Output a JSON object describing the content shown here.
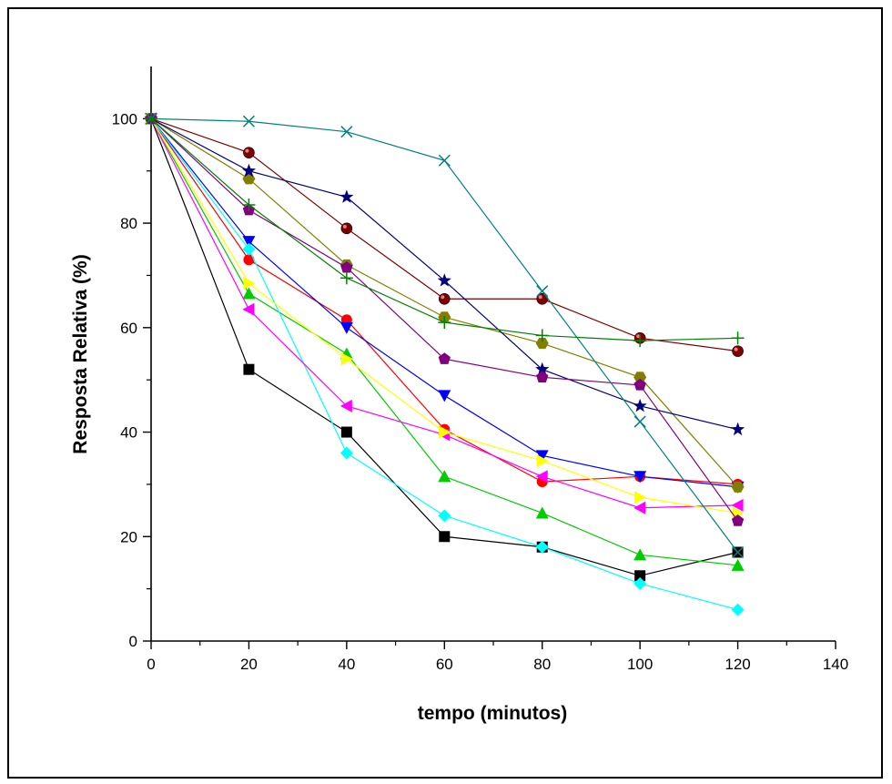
{
  "chart_data": {
    "type": "line",
    "title": "",
    "xlabel": "tempo (minutos)",
    "ylabel": "Resposta Relativa (%)",
    "xlim": [
      0,
      140
    ],
    "ylim": [
      0,
      110
    ],
    "xticks": [
      0,
      20,
      40,
      60,
      80,
      100,
      120,
      140
    ],
    "yticks": [
      0,
      20,
      40,
      60,
      80,
      100
    ],
    "grid": false,
    "legend": "none",
    "x": [
      0,
      20,
      40,
      60,
      80,
      100,
      120
    ],
    "series": [
      {
        "color": "#000000",
        "marker": "square",
        "values": [
          100,
          52,
          40,
          20,
          18,
          12.5,
          17
        ]
      },
      {
        "color": "#ff0000",
        "marker": "circle",
        "values": [
          100,
          73,
          61.5,
          40.5,
          30.5,
          31.5,
          30
        ]
      },
      {
        "color": "#00cc00",
        "marker": "triangle-up",
        "values": [
          100,
          66.5,
          55,
          31.5,
          24.5,
          16.5,
          14.5
        ]
      },
      {
        "color": "#0000ff",
        "marker": "triangle-down",
        "values": [
          100,
          76.5,
          60,
          47,
          35.5,
          31.5,
          29.5
        ]
      },
      {
        "color": "#00ffff",
        "marker": "diamond",
        "values": [
          100,
          75,
          36,
          24,
          18,
          11,
          6
        ]
      },
      {
        "color": "#ff00ff",
        "marker": "triangle-left",
        "values": [
          100,
          63.5,
          45,
          39.5,
          31.5,
          25.5,
          26
        ]
      },
      {
        "color": "#ffff00",
        "marker": "triangle-right",
        "values": [
          100,
          68.5,
          54,
          40,
          34.5,
          27.5,
          24.5
        ]
      },
      {
        "color": "#800000",
        "marker": "ball",
        "values": [
          100,
          93.5,
          79,
          65.5,
          65.5,
          58,
          55.5
        ]
      },
      {
        "color": "#808000",
        "marker": "hexagon",
        "values": [
          100,
          88.5,
          72,
          62,
          57,
          50.5,
          29.5
        ]
      },
      {
        "color": "#000080",
        "marker": "star",
        "values": [
          100,
          90,
          85,
          69,
          52,
          45,
          40.5
        ]
      },
      {
        "color": "#800080",
        "marker": "pentagon",
        "values": [
          100,
          82.5,
          71.5,
          54,
          50.5,
          49,
          23
        ]
      },
      {
        "color": "#008080",
        "marker": "x",
        "values": [
          100,
          99.5,
          97.5,
          92,
          67,
          42,
          17
        ]
      },
      {
        "color": "#008000",
        "marker": "plus",
        "values": [
          100,
          83.5,
          69.5,
          61,
          58.5,
          57.5,
          58
        ]
      }
    ]
  }
}
